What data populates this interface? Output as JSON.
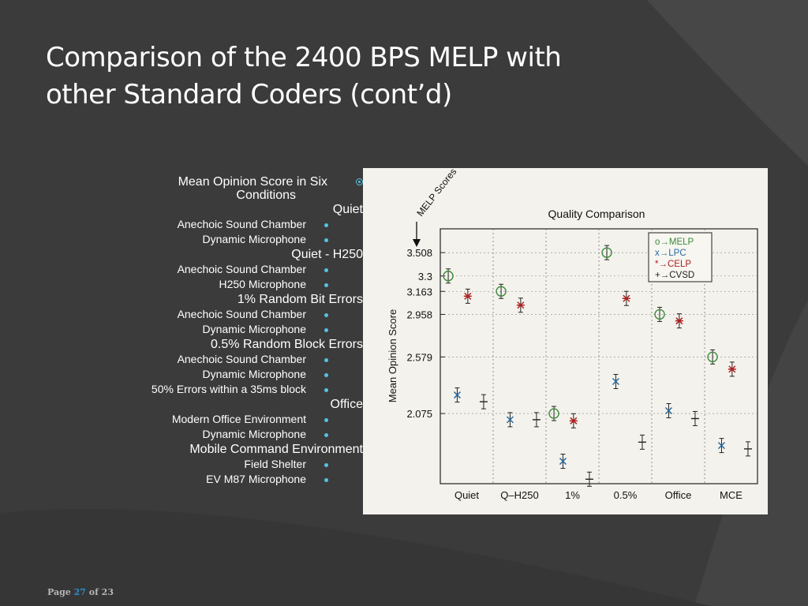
{
  "title": [
    "Comparison of the 2400 BPS MELP with",
    "other Standard Coders (cont’d)"
  ],
  "outline": {
    "top": [
      "Mean Opinion Score in Six",
      "Conditions"
    ],
    "groups": [
      {
        "heading": "Quiet",
        "items": [
          "Anechoic Sound Chamber",
          "Dynamic Microphone"
        ]
      },
      {
        "heading": "Quiet - H250",
        "items": [
          "Anechoic Sound Chamber",
          "H250 Microphone"
        ]
      },
      {
        "heading": "1% Random Bit Errors",
        "items": [
          "Anechoic Sound Chamber",
          "Dynamic Microphone"
        ]
      },
      {
        "heading": "0.5% Random Block Errors",
        "items": [
          "Anechoic Sound Chamber",
          "Dynamic Microphone",
          "50% Errors within a 35ms block"
        ]
      },
      {
        "heading": "Office",
        "items": [
          "Modern Office Environment",
          "Dynamic Microphone"
        ]
      },
      {
        "heading": "Mobile Command Environment",
        "items": [
          "Field Shelter",
          "EV M87 Microphone"
        ]
      }
    ]
  },
  "footer": {
    "prefix": "Page ",
    "page": "27",
    "suffix": " of 23"
  },
  "colors": {
    "accent": "#57c2e3",
    "melp": "#3a8a3a",
    "lpc": "#2a6aa0",
    "celp": "#b02020",
    "cvsd": "#222222"
  },
  "chart_data": {
    "type": "scatter",
    "title": "Quality Comparison",
    "ylabel": "Mean Opinion Score",
    "annotation": "MELP Scores",
    "categories": [
      "Quiet",
      "Q–H250",
      "1%",
      "0.5%",
      "Office",
      "MCE"
    ],
    "ylim": [
      1.45,
      3.72
    ],
    "y_ticks": [
      3.508,
      3.3,
      3.163,
      2.958,
      2.579,
      2.075
    ],
    "y_tick_labels": [
      "3.508",
      "3.3",
      "3.163",
      "2.958",
      "2.579",
      "2.075"
    ],
    "legend": [
      "o→MELP",
      "x→LPC",
      "*→CELP",
      "+→CVSD"
    ],
    "legend_position": "top-right",
    "series": [
      {
        "name": "MELP",
        "marker": "o",
        "values": [
          3.3,
          3.163,
          2.075,
          3.508,
          2.958,
          2.579
        ]
      },
      {
        "name": "LPC",
        "marker": "x",
        "values": [
          2.24,
          2.02,
          1.65,
          2.36,
          2.1,
          1.79
        ]
      },
      {
        "name": "CELP",
        "marker": "*",
        "values": [
          3.12,
          3.04,
          2.01,
          3.1,
          2.9,
          2.47
        ]
      },
      {
        "name": "CVSD",
        "marker": "+",
        "values": [
          2.18,
          2.02,
          1.49,
          1.82,
          2.03,
          1.76
        ]
      }
    ]
  }
}
